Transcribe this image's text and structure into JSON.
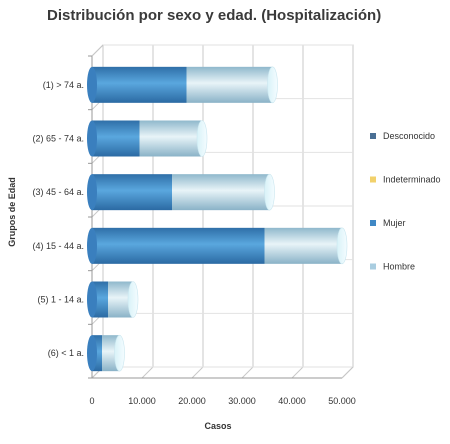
{
  "chart_data": {
    "type": "bar",
    "orientation": "horizontal",
    "stacked": true,
    "title": "Distribución por sexo y edad. (Hospitalización)",
    "xlabel": "Casos",
    "ylabel": "Grupos de Edad",
    "categories": [
      "(1) > 74 a.",
      "(2) 65 - 74 a.",
      "(3) 45 - 64 a.",
      "(4) 15 - 44 a.",
      "(5) 1 - 14 a.",
      "(6) < 1 a."
    ],
    "series": [
      {
        "name": "Desconocido",
        "color": "#4a6f94",
        "values": [
          0,
          0,
          0,
          0,
          0,
          0
        ]
      },
      {
        "name": "Indeterminado",
        "color": "#f2d16b",
        "values": [
          0,
          0,
          0,
          0,
          0,
          0
        ]
      },
      {
        "name": "Mujer",
        "color": "#3f88c5",
        "values": [
          18900,
          9500,
          16000,
          34500,
          3200,
          2000
        ]
      },
      {
        "name": "Hombre",
        "color": "#a9cde0",
        "values": [
          17200,
          12500,
          19500,
          15500,
          5000,
          3500
        ]
      }
    ],
    "xlim": [
      0,
      50000
    ],
    "xticks": [
      "0",
      "10.000",
      "20.000",
      "30.000",
      "40.000",
      "50.000"
    ],
    "xtick_values": [
      0,
      10000,
      20000,
      30000,
      40000,
      50000
    ],
    "grid": true,
    "legend_position": "right"
  }
}
